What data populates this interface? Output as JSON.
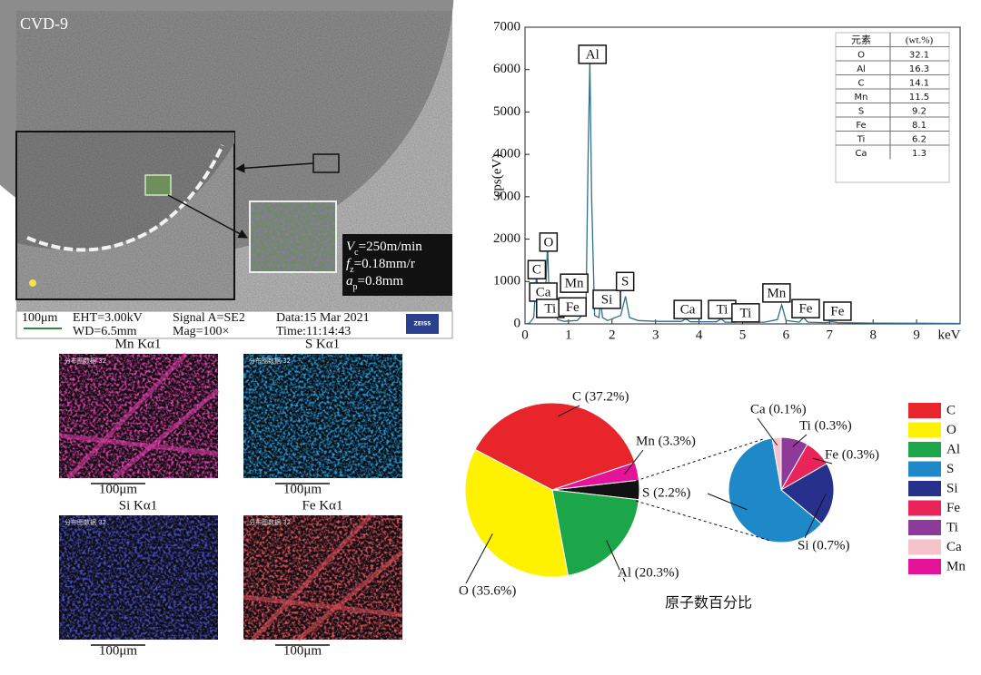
{
  "sem": {
    "label": "CVD-9",
    "params": [
      {
        "symbol": "V",
        "sub": "c",
        "text": "=250m/min"
      },
      {
        "symbol": "f",
        "sub": "z",
        "text": "=0.18mm/r"
      },
      {
        "symbol": "a",
        "sub": "p",
        "text": "=0.8mm"
      }
    ],
    "info": {
      "scale": "100μm",
      "eht": "EHT=3.00kV",
      "wd": "WD=6.5mm",
      "signal": "Signal A=SE2",
      "mag": "Mag=100×",
      "date": "Data:15 Mar 2021",
      "time": "Time:11:14:43",
      "logo": "ZEISS"
    }
  },
  "maps": [
    {
      "title": "Mn Kα1",
      "tag": "分布图数据 32",
      "scale": "100μm",
      "color": "#e23fa8"
    },
    {
      "title": "S Kα1",
      "tag": "分布图数据 32",
      "scale": "100μm",
      "color": "#1fa0e0"
    },
    {
      "title": "Si Kα1",
      "tag": "分布图数据 32",
      "scale": "100μm",
      "color": "#4a4fc8"
    },
    {
      "title": "Fe Kα1",
      "tag": "分布图数据 32",
      "scale": "100μm",
      "color": "#e0505a"
    }
  ],
  "chart_data": [
    {
      "type": "line",
      "ylabel": "cps(eV)",
      "xlabel": "keV",
      "xlim": [
        0,
        10
      ],
      "ylim": [
        0,
        7000
      ],
      "xticks": [
        0,
        1,
        2,
        3,
        4,
        5,
        6,
        7,
        8,
        9
      ],
      "yticks": [
        0,
        1000,
        2000,
        3000,
        4000,
        5000,
        6000,
        7000
      ],
      "color": "#2f6f8f",
      "x": [
        0,
        0.1,
        0.2,
        0.27,
        0.3,
        0.35,
        0.45,
        0.52,
        0.56,
        0.64,
        0.7,
        0.75,
        0.9,
        1.2,
        1.4,
        1.45,
        1.49,
        1.53,
        1.6,
        1.7,
        1.74,
        1.78,
        1.9,
        2.2,
        2.31,
        2.4,
        2.6,
        3.0,
        3.6,
        3.69,
        3.8,
        4.4,
        4.51,
        4.6,
        4.85,
        4.93,
        5.0,
        5.5,
        5.8,
        5.9,
        6.0,
        6.3,
        6.4,
        6.5,
        6.9,
        7.06,
        7.2,
        8,
        9,
        10
      ],
      "values": [
        0,
        20,
        150,
        1250,
        300,
        650,
        250,
        1900,
        300,
        800,
        350,
        100,
        60,
        80,
        300,
        4000,
        6200,
        3000,
        200,
        150,
        550,
        150,
        80,
        200,
        650,
        150,
        80,
        60,
        60,
        120,
        50,
        50,
        120,
        40,
        40,
        80,
        40,
        40,
        100,
        450,
        80,
        40,
        150,
        40,
        30,
        50,
        30,
        20,
        15,
        10
      ],
      "peak_labels": [
        {
          "text": "C",
          "x": 0.27,
          "y": 1280
        },
        {
          "text": "O",
          "x": 0.54,
          "y": 1930
        },
        {
          "text": "Ca",
          "x": 0.42,
          "y": 750
        },
        {
          "text": "Ti",
          "x": 0.58,
          "y": 364
        },
        {
          "text": "Mn",
          "x": 1.13,
          "y": 960
        },
        {
          "text": "Fe",
          "x": 1.09,
          "y": 400
        },
        {
          "text": "Al",
          "x": 1.55,
          "y": 6360
        },
        {
          "text": "Si",
          "x": 1.88,
          "y": 580
        },
        {
          "text": "S",
          "x": 2.3,
          "y": 1000
        },
        {
          "text": "Ca",
          "x": 3.74,
          "y": 340
        },
        {
          "text": "Ti",
          "x": 4.53,
          "y": 340
        },
        {
          "text": "Ti",
          "x": 5.07,
          "y": 260
        },
        {
          "text": "Mn",
          "x": 5.78,
          "y": 730
        },
        {
          "text": "Fe",
          "x": 6.45,
          "y": 360
        },
        {
          "text": "Fe",
          "x": 7.18,
          "y": 300
        }
      ],
      "table": {
        "header": [
          "元素",
          "(wt.%)"
        ],
        "rows": [
          [
            "O",
            32.1
          ],
          [
            "Al",
            16.3
          ],
          [
            "C",
            14.1
          ],
          [
            "Mn",
            11.5
          ],
          [
            "S",
            9.2
          ],
          [
            "Fe",
            8.1
          ],
          [
            "Ti",
            6.2
          ],
          [
            "Ca",
            1.3
          ]
        ]
      }
    },
    {
      "type": "pie",
      "caption": "原子数百分比",
      "categories": [
        "C",
        "O",
        "Al",
        "S",
        "Si",
        "Fe",
        "Ti",
        "Ca",
        "Mn"
      ],
      "values": [
        37.2,
        35.6,
        20.3,
        2.2,
        0.7,
        0.3,
        0.3,
        0.1,
        3.3
      ],
      "value_labels": [
        "C (37.2%)",
        "O (35.6%)",
        "Al (20.3%)",
        "S (2.2%)",
        "Si (0.7%)",
        "Fe (0.3%)",
        "Ti (0.3%)",
        "Ca (0.1%)",
        "Mn (3.3%)"
      ],
      "colors": [
        "#e8252a",
        "#fff200",
        "#1ba64a",
        "#1e88c9",
        "#27318b",
        "#e8245a",
        "#8e3a9a",
        "#f7c3cb",
        "#e5139a"
      ],
      "legend": "right"
    }
  ]
}
